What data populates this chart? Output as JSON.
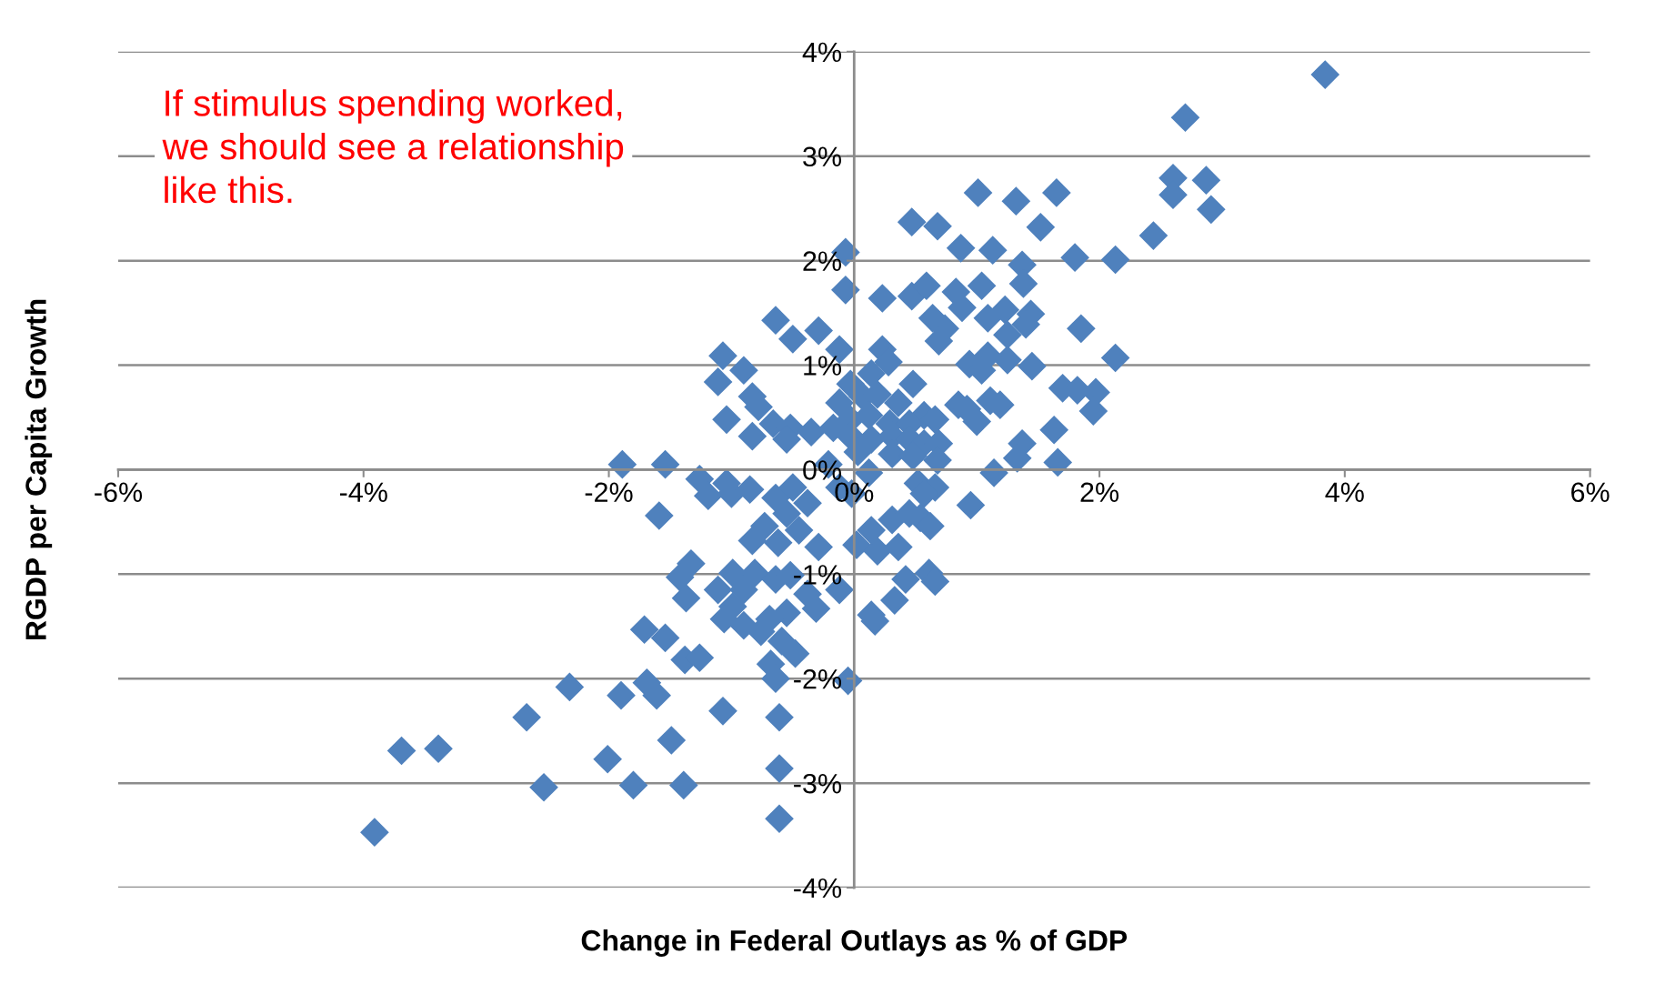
{
  "chart_data": {
    "type": "scatter",
    "xlabel": "Change in Federal Outlays as % of GDP",
    "ylabel": "RGDP per Capita Growth",
    "annotations": [
      "If stimulus spending worked, we should see a relationship like this."
    ],
    "color": "#4f81bd",
    "marker": "diamond",
    "grid": "y",
    "xlim": [
      -6,
      6
    ],
    "ylim": [
      -4,
      4
    ],
    "xticks": [
      {
        "value": -6,
        "label": "-6%"
      },
      {
        "value": -4,
        "label": "-4%"
      },
      {
        "value": -2,
        "label": "-2%"
      },
      {
        "value": 0,
        "label": "0%"
      },
      {
        "value": 2,
        "label": "2%"
      },
      {
        "value": 4,
        "label": "4%"
      },
      {
        "value": 6,
        "label": "6%"
      }
    ],
    "yticks": [
      {
        "value": -4,
        "label": "-4%"
      },
      {
        "value": -3,
        "label": "-3%"
      },
      {
        "value": -2,
        "label": "-2%"
      },
      {
        "value": -1,
        "label": "-1%"
      },
      {
        "value": 0,
        "label": "0%"
      },
      {
        "value": 1,
        "label": "1%"
      },
      {
        "value": 2,
        "label": "2%"
      },
      {
        "value": 3,
        "label": "3%"
      },
      {
        "value": 4,
        "label": "4%"
      }
    ],
    "x": [
      3.84,
      2.7,
      2.6,
      2.87,
      2.6,
      2.91,
      2.44,
      2.13,
      1.8,
      1.65,
      1.01,
      1.32,
      1.52,
      0.47,
      0.68,
      0.87,
      1.13,
      1.37,
      1.38,
      -0.07,
      -0.07,
      0.23,
      0.47,
      0.59,
      0.83,
      1.04,
      0.88,
      0.64,
      0.74,
      0.69,
      1.09,
      1.23,
      1.44,
      1.4,
      1.25,
      1.85,
      2.13,
      1.45,
      1.25,
      1.09,
      0.94,
      1.04,
      1.7,
      1.82,
      1.97,
      1.95,
      1.11,
      1.19,
      0.85,
      0.92,
      1.0,
      1.63,
      1.37,
      1.33,
      1.66,
      1.14,
      0.95,
      -0.64,
      -0.29,
      -0.5,
      -0.12,
      -1.07,
      -0.9,
      -1.11,
      -0.83,
      -0.78,
      -1.04,
      -0.83,
      -0.66,
      -0.52,
      -0.35,
      -0.55,
      -1.89,
      -1.54,
      -1.26,
      -1.04,
      -1.19,
      -1.0,
      -1.59,
      0.23,
      0.28,
      0.14,
      -0.03,
      0.48,
      -0.12,
      0.07,
      0.19,
      0.36,
      0.57,
      0.66,
      -0.03,
      0.12,
      0.29,
      0.45,
      -0.17,
      -0.03,
      0.14,
      0.31,
      0.45,
      0.57,
      0.69,
      0.03,
      0.31,
      0.48,
      0.68,
      -0.21,
      0.12,
      0.52,
      0.66,
      0.57,
      -0.02,
      -0.12,
      -0.85,
      -0.64,
      -0.5,
      -0.38,
      -0.55,
      -0.73,
      -0.45,
      -0.62,
      -0.29,
      -0.83,
      -0.99,
      -0.81,
      -1.11,
      -0.9,
      -0.99,
      -0.64,
      -0.52,
      -0.38,
      -0.31,
      -0.55,
      -0.69,
      -0.76,
      -0.9,
      -1.06,
      -0.59,
      -0.48,
      -0.68,
      -0.64,
      -1.33,
      -1.42,
      -1.37,
      -1.71,
      -1.54,
      -1.38,
      -1.26,
      -1.69,
      -1.61,
      -1.9,
      -2.32,
      -2.67,
      -1.07,
      -1.49,
      -0.61,
      -0.61,
      -0.61,
      -2.01,
      -1.8,
      -1.39,
      -2.53,
      -3.69,
      -3.39,
      -3.91,
      -0.12,
      -0.05,
      0.14,
      0.17,
      0.33,
      0.42,
      0.61,
      0.66,
      0.02,
      0.19,
      0.36,
      0.54,
      0.62,
      0.31,
      0.14,
      0.45
    ],
    "values": [
      3.78,
      3.37,
      2.79,
      2.77,
      2.63,
      2.49,
      2.24,
      2.01,
      2.03,
      2.65,
      2.65,
      2.57,
      2.32,
      2.37,
      2.33,
      2.12,
      2.1,
      1.96,
      1.78,
      2.08,
      1.72,
      1.64,
      1.66,
      1.76,
      1.7,
      1.76,
      1.55,
      1.45,
      1.35,
      1.23,
      1.45,
      1.53,
      1.49,
      1.39,
      1.29,
      1.35,
      1.07,
      0.99,
      1.05,
      1.09,
      1.01,
      0.95,
      0.78,
      0.76,
      0.74,
      0.56,
      0.66,
      0.62,
      0.62,
      0.58,
      0.46,
      0.38,
      0.25,
      0.11,
      0.07,
      -0.03,
      -0.34,
      1.43,
      1.33,
      1.25,
      1.15,
      1.09,
      0.95,
      0.84,
      0.7,
      0.6,
      0.48,
      0.32,
      0.44,
      0.4,
      0.36,
      0.29,
      0.05,
      0.05,
      -0.09,
      -0.13,
      -0.25,
      -0.23,
      -0.44,
      1.15,
      1.03,
      0.92,
      0.82,
      0.82,
      0.64,
      0.7,
      0.72,
      0.64,
      0.52,
      0.48,
      0.48,
      0.52,
      0.44,
      0.44,
      0.4,
      0.32,
      0.29,
      0.32,
      0.29,
      0.25,
      0.25,
      0.17,
      0.15,
      0.13,
      0.09,
      0.05,
      -0.03,
      -0.13,
      -0.17,
      -0.23,
      -0.23,
      -0.17,
      -0.19,
      -0.27,
      -0.17,
      -0.32,
      -0.42,
      -0.54,
      -0.58,
      -0.7,
      -0.74,
      -0.68,
      -0.99,
      -0.99,
      -1.15,
      -1.15,
      -1.31,
      -1.05,
      -1.01,
      -1.19,
      -1.33,
      -1.37,
      -1.43,
      -1.55,
      -1.49,
      -1.43,
      -1.64,
      -1.76,
      -1.86,
      -2.0,
      -0.9,
      -1.03,
      -1.23,
      -1.53,
      -1.61,
      -1.82,
      -1.8,
      -2.04,
      -2.16,
      -2.16,
      -2.08,
      -2.37,
      -2.31,
      -2.59,
      -2.37,
      -2.86,
      -3.34,
      -2.77,
      -3.02,
      -3.02,
      -3.04,
      -2.69,
      -2.67,
      -3.47,
      -1.15,
      -2.02,
      -1.39,
      -1.45,
      -1.25,
      -1.05,
      -0.99,
      -1.07,
      -0.72,
      -0.78,
      -0.74,
      -0.46,
      -0.54,
      -0.48,
      -0.58,
      -0.42
    ]
  }
}
